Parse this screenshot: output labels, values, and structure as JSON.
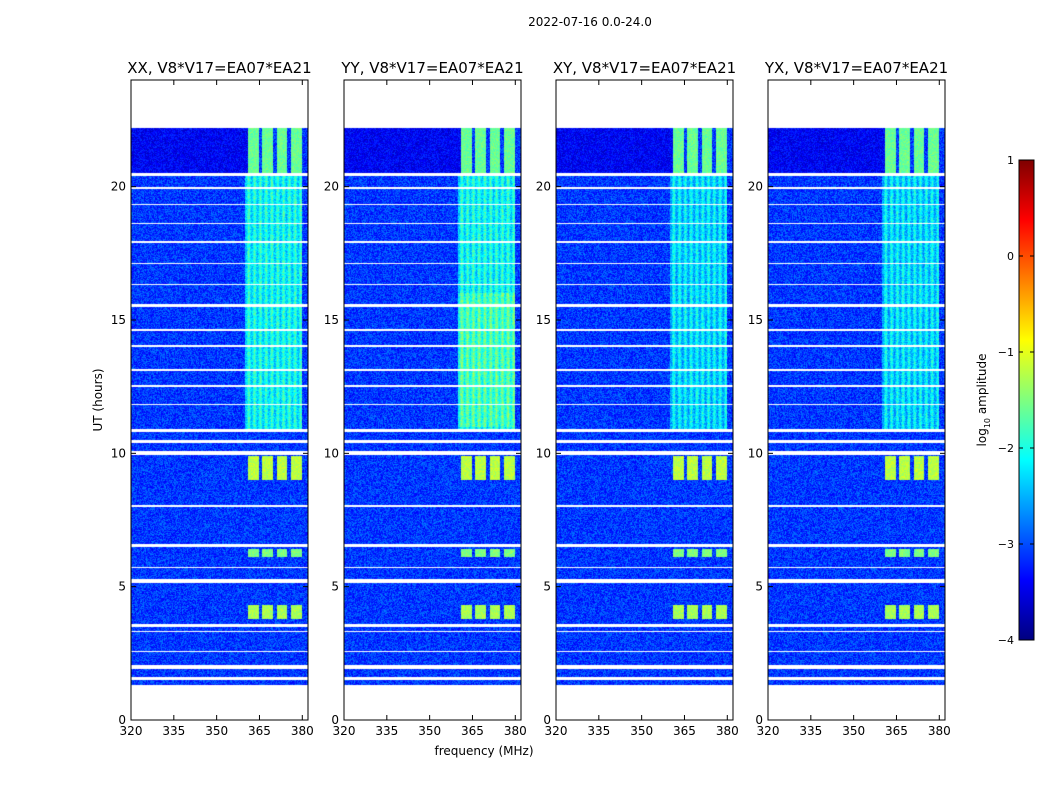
{
  "suptitle": "2022-07-16 0.0-24.0",
  "colors": {
    "jet": [
      "#00007f",
      "#0000ff",
      "#007fff",
      "#00ffff",
      "#7fff7f",
      "#ffff00",
      "#ff7f00",
      "#ff0000",
      "#7f0000"
    ],
    "axis": "#000000",
    "background": "#ffffff"
  },
  "chart_data": {
    "type": "heatmap",
    "xlabel": "frequency (MHz)",
    "ylabel": "UT (hours)",
    "xlim": [
      320,
      382
    ],
    "ylim": [
      0,
      24
    ],
    "xticks": [
      320,
      335,
      350,
      365,
      380
    ],
    "yticks": [
      0,
      5,
      10,
      15,
      20
    ],
    "data_extent_hours": [
      1.3,
      22.2
    ],
    "panels": [
      {
        "title": "XX, V8*V17=EA07*EA21",
        "pol": "XX"
      },
      {
        "title": "YY, V8*V17=EA07*EA21",
        "pol": "YY"
      },
      {
        "title": "XY, V8*V17=EA07*EA21",
        "pol": "XY"
      },
      {
        "title": "YX, V8*V17=EA07*EA21",
        "pol": "YX"
      }
    ],
    "rfi_band_mhz": [
      360,
      380
    ],
    "bright_bursts": [
      {
        "t_start": 3.8,
        "t_end": 4.3,
        "log_amp": -1.3
      },
      {
        "t_start": 6.1,
        "t_end": 6.4,
        "log_amp": -1.5
      },
      {
        "t_start": 9.0,
        "t_end": 9.9,
        "log_amp": -1.2
      },
      {
        "t_start": 20.5,
        "t_end": 22.2,
        "log_amp": -1.6
      }
    ],
    "flagged_gaps_hours": [
      [
        1.5,
        1.6
      ],
      [
        1.9,
        2.05
      ],
      [
        2.55,
        2.6
      ],
      [
        3.3,
        3.35
      ],
      [
        3.5,
        3.6
      ],
      [
        5.15,
        5.3
      ],
      [
        5.7,
        5.75
      ],
      [
        6.5,
        6.6
      ],
      [
        8.0,
        8.05
      ],
      [
        9.95,
        10.1
      ],
      [
        10.4,
        10.5
      ],
      [
        10.8,
        10.9
      ],
      [
        11.8,
        11.85
      ],
      [
        12.5,
        12.55
      ],
      [
        13.1,
        13.15
      ],
      [
        14.0,
        14.05
      ],
      [
        14.6,
        14.65
      ],
      [
        15.5,
        15.6
      ],
      [
        16.3,
        16.35
      ],
      [
        17.1,
        17.15
      ],
      [
        17.9,
        17.95
      ],
      [
        18.6,
        18.65
      ],
      [
        19.3,
        19.35
      ],
      [
        19.9,
        20.0
      ],
      [
        20.4,
        20.5
      ]
    ],
    "colorbar": {
      "label": "log",
      "label_sub": "10",
      "label_suffix": " amplitude",
      "ticks": [
        1,
        0,
        -1,
        -2,
        -3,
        -4
      ],
      "range": [
        -4,
        1
      ]
    }
  }
}
